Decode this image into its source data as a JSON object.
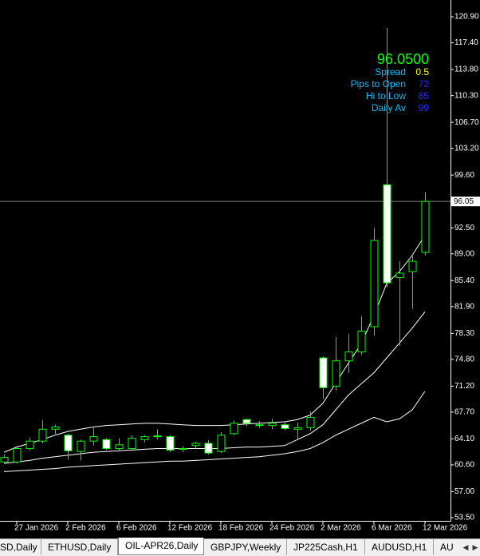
{
  "chart_data": {
    "type": "candlestick",
    "categories": [
      null,
      "27 Jan 2026",
      null,
      null,
      null,
      "2 Feb 2026",
      null,
      null,
      null,
      "6 Feb 2026",
      null,
      null,
      null,
      "12 Feb 2026",
      null,
      null,
      null,
      "18 Feb 2026",
      null,
      null,
      null,
      "24 Feb 2026",
      null,
      null,
      null,
      "2 Mar 2026",
      null,
      null,
      null,
      "6 Mar 2026",
      null,
      null,
      null,
      "12 Mar 2026"
    ],
    "open": [
      61.0,
      61.0,
      62.8,
      63.8,
      65.4,
      64.6,
      62.4,
      63.8,
      64.0,
      62.8,
      62.8,
      64.0,
      64.4,
      64.4,
      62.8,
      63.2,
      63.5,
      62.4,
      64.8,
      66.7,
      66.0,
      65.9,
      66.0,
      65.4,
      65.6,
      75.0,
      71.2,
      74.6,
      75.8,
      79.2,
      98.3,
      85.8,
      86.6,
      89.2
    ],
    "high": [
      62.0,
      63.2,
      64.3,
      66.6,
      66.0,
      64.8,
      64.0,
      65.6,
      64.2,
      64.2,
      64.6,
      64.6,
      65.4,
      64.6,
      63.1,
      63.7,
      63.9,
      65.0,
      66.6,
      66.8,
      66.5,
      66.8,
      66.4,
      66.3,
      67.8,
      75.2,
      77.8,
      78.2,
      80.6,
      92.5,
      119.4,
      88.0,
      89.0,
      97.3
    ],
    "low": [
      60.8,
      60.8,
      62.5,
      63.5,
      64.8,
      61.3,
      61.2,
      63.2,
      62.6,
      62.4,
      62.6,
      63.6,
      64.0,
      62.3,
      62.3,
      62.8,
      62.0,
      62.2,
      64.6,
      65.8,
      65.6,
      65.4,
      65.3,
      64.0,
      65.2,
      69.5,
      70.6,
      73.0,
      75.4,
      78.0,
      84.5,
      76.6,
      81.6,
      88.8
    ],
    "close": [
      61.6,
      62.8,
      63.8,
      65.4,
      65.7,
      62.5,
      63.8,
      64.4,
      62.8,
      63.3,
      64.2,
      64.4,
      64.5,
      62.6,
      62.7,
      63.5,
      62.2,
      64.6,
      66.2,
      66.2,
      65.9,
      66.2,
      65.5,
      65.6,
      67.0,
      71.0,
      74.6,
      75.8,
      78.6,
      90.8,
      85.1,
      86.4,
      88.0,
      96.05
    ],
    "up_color": "#00ff00",
    "down_color": "#ffffff",
    "overlays": [
      {
        "color": "#ffffff",
        "values": [
          62.3,
          63.0,
          63.5,
          64.0,
          64.6,
          65.1,
          65.4,
          65.7,
          65.9,
          66.0,
          66.1,
          66.2,
          66.2,
          66.1,
          66.0,
          65.9,
          65.9,
          65.9,
          66.0,
          66.1,
          66.2,
          66.3,
          66.4,
          66.7,
          67.3,
          68.9,
          71.6,
          74.3,
          76.9,
          80.7,
          85.0,
          86.6,
          88.8,
          91.5
        ]
      },
      {
        "color": "#ffffff",
        "values": [
          60.8,
          61.0,
          61.2,
          61.5,
          61.7,
          61.9,
          62.1,
          62.3,
          62.4,
          62.5,
          62.6,
          62.7,
          62.8,
          62.8,
          62.8,
          62.8,
          62.8,
          62.8,
          62.9,
          63.0,
          63.0,
          63.1,
          63.2,
          64.0,
          64.8,
          66.0,
          68.0,
          70.0,
          71.5,
          73.0,
          75.0,
          77.0,
          79.0,
          81.2
        ]
      },
      {
        "color": "#ffffff",
        "values": [
          59.7,
          59.8,
          59.9,
          60.0,
          60.1,
          60.3,
          60.4,
          60.5,
          60.6,
          60.7,
          60.8,
          60.9,
          61.0,
          61.1,
          61.1,
          61.2,
          61.3,
          61.4,
          61.5,
          61.6,
          61.7,
          61.9,
          62.1,
          62.4,
          62.8,
          63.6,
          64.6,
          65.4,
          66.2,
          67.0,
          66.4,
          66.8,
          68.0,
          70.5
        ]
      }
    ],
    "current_price": 96.05,
    "ylim": [
      53.07,
      123.16
    ],
    "yticks": [
      {
        "value": 120.9,
        "label": "120.90"
      },
      {
        "value": 117.4,
        "label": "117.40"
      },
      {
        "value": 113.8,
        "label": "113.80"
      },
      {
        "value": 110.3,
        "label": "110.30"
      },
      {
        "value": 106.7,
        "label": "106.70"
      },
      {
        "value": 103.2,
        "label": "103.20"
      },
      {
        "value": 99.6,
        "label": "99.60"
      },
      {
        "value": 92.5,
        "label": "92.50"
      },
      {
        "value": 89.0,
        "label": "89.00"
      },
      {
        "value": 85.4,
        "label": "85.40"
      },
      {
        "value": 81.9,
        "label": "81.90"
      },
      {
        "value": 78.3,
        "label": "78.30"
      },
      {
        "value": 74.8,
        "label": "74.80"
      },
      {
        "value": 71.2,
        "label": "71.20"
      },
      {
        "value": 67.7,
        "label": "67.70"
      },
      {
        "value": 64.1,
        "label": "64.10"
      },
      {
        "value": 60.6,
        "label": "60.60"
      },
      {
        "value": 57.0,
        "label": "57.00"
      },
      {
        "value": 53.5,
        "label": "53.50"
      }
    ]
  },
  "info_panel": {
    "price": "96.0500",
    "rows": [
      {
        "label": "Spread",
        "value": "0.5"
      },
      {
        "label": "Pips to Open",
        "value": "72"
      },
      {
        "label": "Hi to Low",
        "value": "85"
      },
      {
        "label": "Daily Av",
        "value": "99"
      }
    ]
  },
  "tabs": [
    "SD,Daily",
    "ETHUSD,Daily",
    "OIL-APR26,Daily",
    "GBPJPY,Weekly",
    "JP225Cash,H1",
    "AUDUSD,H1",
    "AU"
  ]
}
